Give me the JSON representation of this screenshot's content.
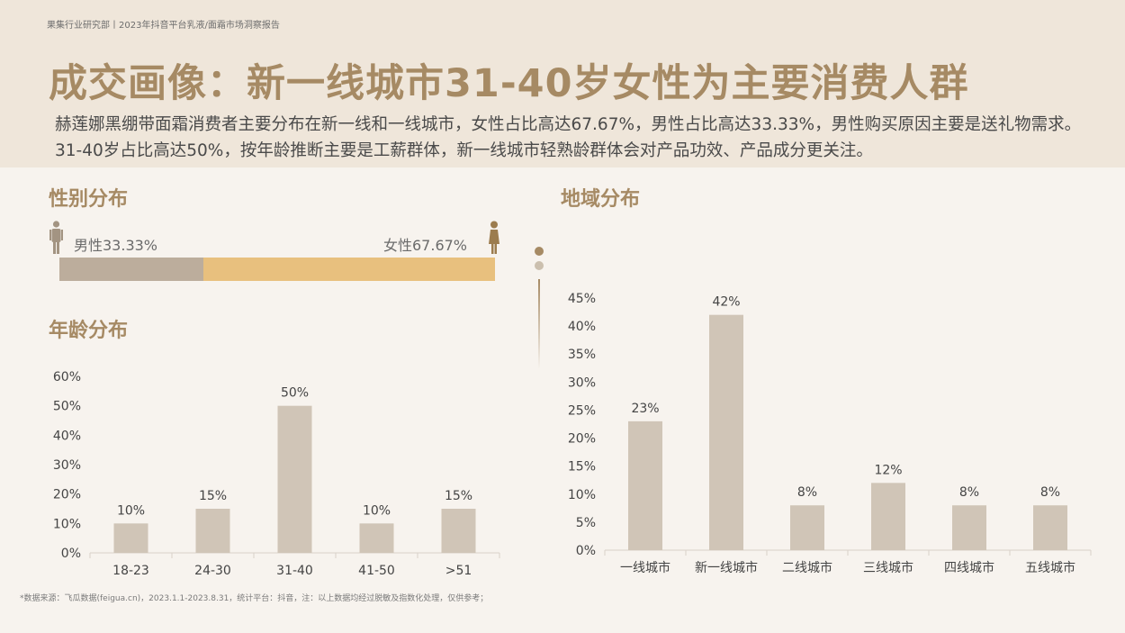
{
  "header": {
    "breadcrumb": "果集行业研究部丨2023年抖音平台乳液/面霜市场洞察报告",
    "title": "成交画像：新一线城市31-40岁女性为主要消费人群",
    "summary": "赫莲娜黑绷带面霜消费者主要分布在新一线和一线城市，女性占比高达67.67%，男性占比高达33.33%，男性购买原因主要是送礼物需求。31-40岁占比高达50%，按年龄推断主要是工薪群体，新一线城市轻熟龄群体会对产品功效、产品成分更关注。"
  },
  "gender": {
    "title": "性别分布",
    "male_label": "男性33.33%",
    "female_label": "女性67.67%",
    "male_icon": "male-person-icon",
    "female_icon": "female-person-icon",
    "male_color": "#bcad9c",
    "female_color": "#e8c07e"
  },
  "age": {
    "title": "年龄分布"
  },
  "region": {
    "title": "地域分布"
  },
  "colors": {
    "accent": "#a68a64",
    "bar": "#d0c5b7"
  },
  "footnote": "*数据来源：飞瓜数据(feigua.cn)，2023.1.1-2023.8.31，统计平台：抖音，注：以上数据均经过脱敏及指数化处理，仅供参考；",
  "chart_data": [
    {
      "type": "bar",
      "title": "性别分布",
      "categories": [
        "男性",
        "女性"
      ],
      "values": [
        33.33,
        67.67
      ]
    },
    {
      "type": "bar",
      "title": "年龄分布",
      "categories": [
        "18-23",
        "24-30",
        "31-40",
        "41-50",
        ">51"
      ],
      "values": [
        10,
        15,
        50,
        10,
        15
      ],
      "value_labels": [
        "10%",
        "15%",
        "50%",
        "10%",
        "15%"
      ],
      "yticks": [
        "0%",
        "10%",
        "20%",
        "30%",
        "40%",
        "50%",
        "60%"
      ],
      "ylim": [
        0,
        60
      ],
      "grid": false
    },
    {
      "type": "bar",
      "title": "地域分布",
      "categories": [
        "一线城市",
        "新一线城市",
        "二线城市",
        "三线城市",
        "四线城市",
        "五线城市"
      ],
      "values": [
        23,
        42,
        8,
        12,
        8,
        8
      ],
      "value_labels": [
        "23%",
        "42%",
        "8%",
        "12%",
        "8%",
        "8%"
      ],
      "yticks": [
        "0%",
        "5%",
        "10%",
        "15%",
        "20%",
        "25%",
        "30%",
        "35%",
        "40%",
        "45%"
      ],
      "ylim": [
        0,
        45
      ],
      "grid": false
    }
  ]
}
